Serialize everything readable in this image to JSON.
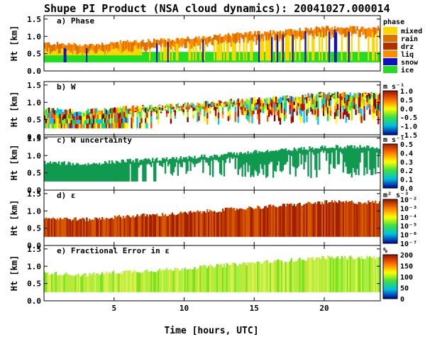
{
  "figure": {
    "title": "Shupe PI Product (NSA cloud dynamics): 20041027.000014",
    "xlabel": "Time [hours, UTC]",
    "ylabel": "Ht [km]",
    "xticks": [
      "5",
      "10",
      "15",
      "20"
    ]
  },
  "chart_data": [
    {
      "type": "heatmap",
      "panel_title": "a) Phase",
      "ylabel": "Ht [km]",
      "yticks": [
        "1.5",
        "1.0",
        "0.5",
        "0.0"
      ],
      "ylim": [
        0.0,
        1.6
      ],
      "xlim": [
        0,
        24
      ],
      "legend_title": "phase",
      "categories": [
        {
          "label": "mixed",
          "color": "#ffd700"
        },
        {
          "label": "rain",
          "color": "#e07000"
        },
        {
          "label": "drz",
          "color": "#b03000"
        },
        {
          "label": "liq",
          "color": "#ff8c00"
        },
        {
          "label": "snow",
          "color": "#1010c0"
        },
        {
          "label": "ice",
          "color": "#22dd22"
        }
      ],
      "cloud_base_km": [
        [
          0,
          0.25
        ],
        [
          24,
          0.25
        ]
      ],
      "cloud_top_km": [
        [
          0,
          0.8
        ],
        [
          3,
          0.75
        ],
        [
          6,
          0.85
        ],
        [
          9,
          0.9
        ],
        [
          12,
          1.0
        ],
        [
          15,
          1.1
        ],
        [
          17,
          1.15
        ],
        [
          20,
          1.25
        ],
        [
          24,
          1.25
        ]
      ]
    },
    {
      "type": "heatmap",
      "panel_title": "b) W",
      "ylabel": "Ht [km]",
      "yticks": [
        "1.5",
        "1.0",
        "0.5",
        "0.0"
      ],
      "ylim": [
        0.0,
        1.6
      ],
      "xlim": [
        0,
        24
      ],
      "colorbar_unit": "m s⁻¹",
      "colorbar_ticks": [
        "1.0",
        "0.5",
        "0.0",
        "-0.5",
        "-1.0",
        "-1.5"
      ],
      "colorbar_range": [
        -1.5,
        1.0
      ]
    },
    {
      "type": "heatmap",
      "panel_title": "c) W uncertainty",
      "ylabel": "Ht [km]",
      "yticks": [
        "1.5",
        "1.0",
        "0.5",
        "0.0"
      ],
      "ylim": [
        0.0,
        1.6
      ],
      "xlim": [
        0,
        24
      ],
      "colorbar_unit": "m s⁻¹",
      "colorbar_ticks": [
        "0.5",
        "0.4",
        "0.3",
        "0.2",
        "0.1",
        "0.0"
      ],
      "colorbar_range": [
        0.0,
        0.5
      ]
    },
    {
      "type": "heatmap",
      "panel_title": "d) ε",
      "ylabel": "Ht [km]",
      "yticks": [
        "1.5",
        "1.0",
        "0.5",
        "0.0"
      ],
      "ylim": [
        0.0,
        1.6
      ],
      "xlim": [
        0,
        24
      ],
      "colorbar_unit": "m² s⁻³",
      "colorbar_ticks": [
        "10⁻²",
        "10⁻³",
        "10⁻⁴",
        "10⁻⁵",
        "10⁻⁶",
        "10⁻⁷"
      ],
      "colorbar_range": [
        -7,
        -2
      ]
    },
    {
      "type": "heatmap",
      "panel_title": "e) Fractional Error in ε",
      "ylabel": "Ht [km]",
      "yticks": [
        "1.5",
        "1.0",
        "0.5",
        "0.0"
      ],
      "ylim": [
        0.0,
        1.6
      ],
      "xlim": [
        0,
        24
      ],
      "colorbar_unit": "%",
      "colorbar_ticks": [
        "200",
        "150",
        "100",
        "50",
        "0"
      ],
      "colorbar_range": [
        0,
        200
      ]
    }
  ],
  "colors": {
    "w_scale": [
      "#0000a0",
      "#0050ff",
      "#00c8ff",
      "#00e060",
      "#a0f000",
      "#ffff00",
      "#ffb000",
      "#ff5000",
      "#c01000",
      "#800000"
    ],
    "unc_fill": "#109a50",
    "eps_fill": [
      "#a02000",
      "#c03c00",
      "#d85a00"
    ],
    "err_fill": [
      "#a8f040",
      "#80e020",
      "#d8f050",
      "#c0e838"
    ]
  }
}
